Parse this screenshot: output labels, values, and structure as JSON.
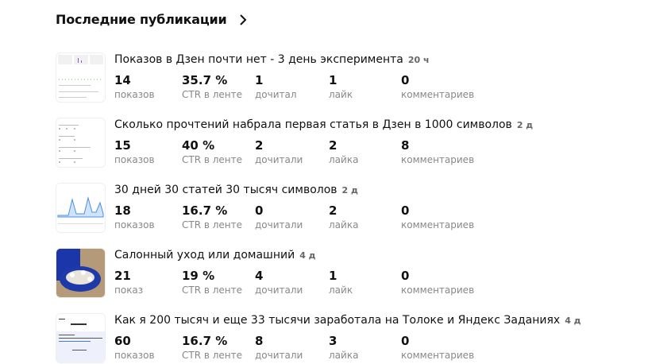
{
  "heading": {
    "title": "Последние публикации",
    "icon": "chevron-right-icon"
  },
  "colors": {
    "text": "#111111",
    "label": "#888888",
    "age": "#666666"
  },
  "publications": [
    {
      "title": "Показов в Дзен почти нет - 3 день эксперимента",
      "age": "20 ч",
      "stats": [
        {
          "value": "14",
          "label": "показов"
        },
        {
          "value": "35.7 %",
          "label": "CTR в ленте"
        },
        {
          "value": "1",
          "label": "дочитал"
        },
        {
          "value": "1",
          "label": "лайк"
        },
        {
          "value": "0",
          "label": "комментариев"
        }
      ]
    },
    {
      "title": "Сколько прочтений набрала первая статья в Дзен в 1000 символов",
      "age": "2 д",
      "stats": [
        {
          "value": "15",
          "label": "показов"
        },
        {
          "value": "40 %",
          "label": "CTR в ленте"
        },
        {
          "value": "2",
          "label": "дочитали"
        },
        {
          "value": "2",
          "label": "лайка"
        },
        {
          "value": "8",
          "label": "комментариев"
        }
      ]
    },
    {
      "title": "30 дней 30 статей 30 тысяч символов",
      "age": "2 д",
      "stats": [
        {
          "value": "18",
          "label": "показов"
        },
        {
          "value": "16.7 %",
          "label": "CTR в ленте"
        },
        {
          "value": "0",
          "label": "дочитали"
        },
        {
          "value": "2",
          "label": "лайка"
        },
        {
          "value": "0",
          "label": "комментариев"
        }
      ]
    },
    {
      "title": "Салонный уход или домашний",
      "age": "4 д",
      "stats": [
        {
          "value": "21",
          "label": "показ"
        },
        {
          "value": "19 %",
          "label": "CTR в ленте"
        },
        {
          "value": "4",
          "label": "дочитали"
        },
        {
          "value": "1",
          "label": "лайк"
        },
        {
          "value": "0",
          "label": "комментариев"
        }
      ]
    },
    {
      "title": "Как я 200 тысяч и еще 33 тысячи заработала на Толоке и Яндекс Заданиях",
      "age": "4 д",
      "stats": [
        {
          "value": "60",
          "label": "показов"
        },
        {
          "value": "16.7 %",
          "label": "CTR в ленте"
        },
        {
          "value": "8",
          "label": "дочитали"
        },
        {
          "value": "3",
          "label": "лайка"
        },
        {
          "value": "0",
          "label": "комментариев"
        }
      ]
    }
  ]
}
